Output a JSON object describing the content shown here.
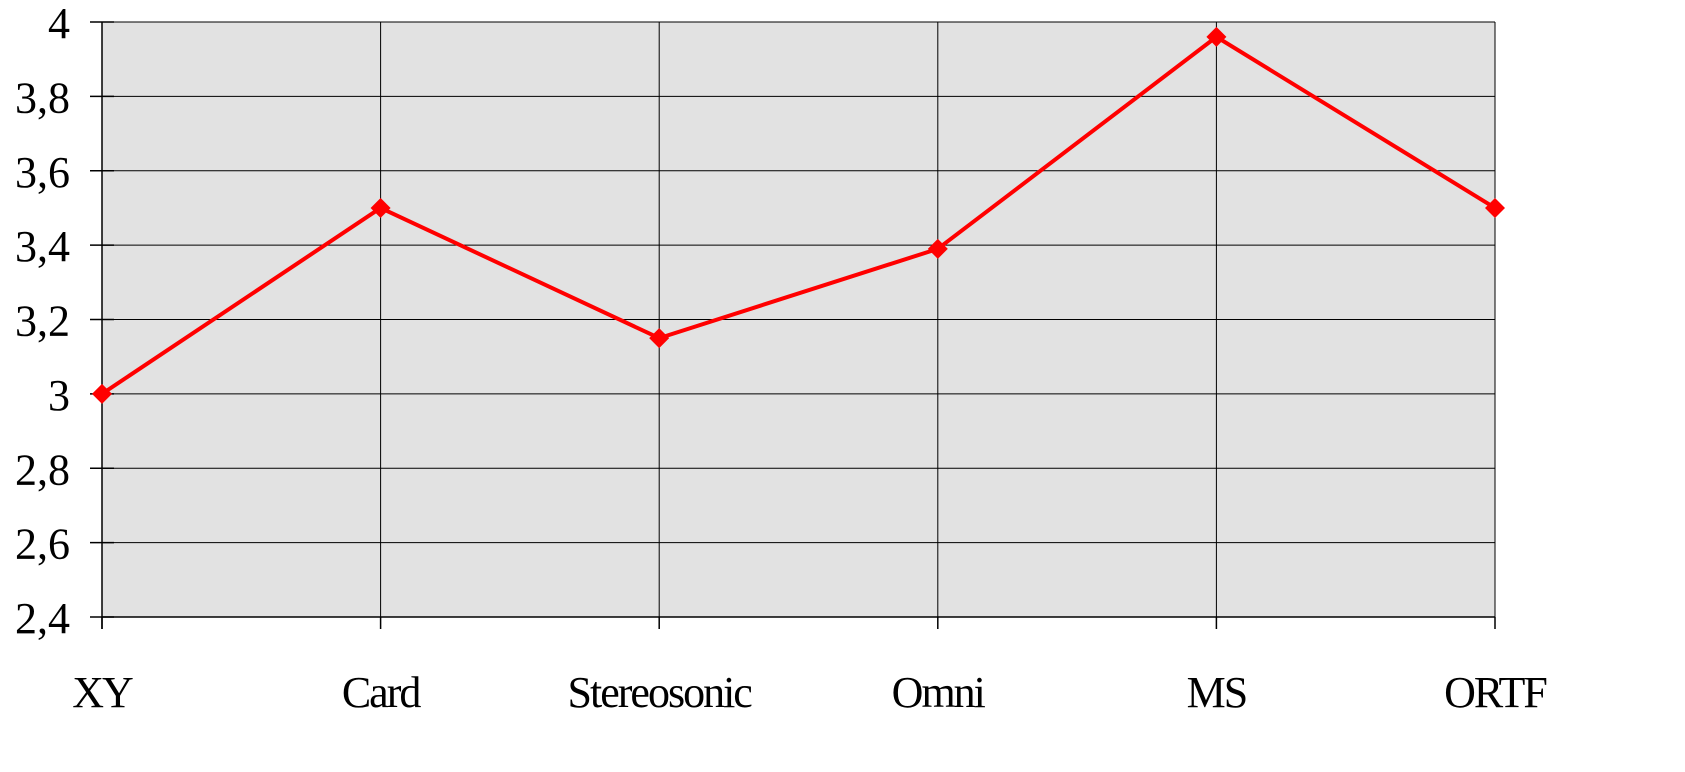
{
  "chart_data": {
    "type": "line",
    "categories": [
      "XY",
      "Card",
      "Stereosonic",
      "Omni",
      "MS",
      "ORTF"
    ],
    "series": [
      {
        "values": [
          3.0,
          3.5,
          3.15,
          3.39,
          3.96,
          3.5
        ],
        "color": "#ff0000",
        "marker": "diamond"
      }
    ],
    "ylim": [
      2.4,
      4.0
    ],
    "yticks": [
      2.4,
      2.6,
      2.8,
      3.0,
      3.2,
      3.4,
      3.6,
      3.8,
      4.0
    ],
    "ytick_labels": [
      "2,4",
      "2,6",
      "2,8",
      "3",
      "3,2",
      "3,4",
      "3,6",
      "3,8",
      "4"
    ],
    "grid": true,
    "plot_background": "#e2e2e2",
    "grid_color": "#000000",
    "legend": "none"
  }
}
